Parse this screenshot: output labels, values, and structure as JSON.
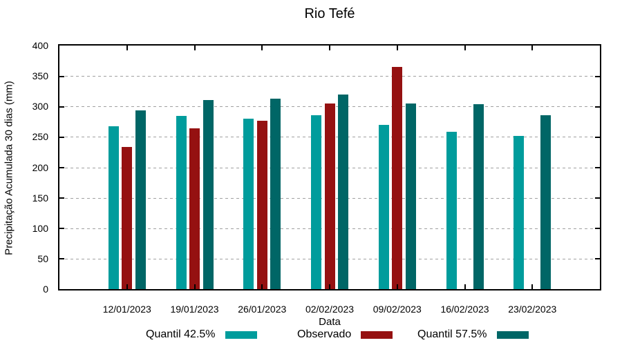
{
  "chart_data": {
    "type": "bar",
    "title": "Rio Tefé",
    "xlabel": "Data",
    "ylabel": "Precipitação Acumulada 30 dias (mm)",
    "ylim": [
      0,
      400
    ],
    "ytick_step": 50,
    "yticks": [
      0,
      50,
      100,
      150,
      200,
      250,
      300,
      350,
      400
    ],
    "grid": "horizontal-dotted",
    "gridline_color": "#a0a0a0",
    "legend_position": "bottom-center",
    "categories": [
      "12/01/2023",
      "19/01/2023",
      "26/01/2023",
      "02/02/2023",
      "09/02/2023",
      "16/02/2023",
      "23/02/2023"
    ],
    "series": [
      {
        "name": "Quantil 42.5%",
        "color": "#009C9C",
        "values": [
          267,
          285,
          280,
          286,
          270,
          258,
          252
        ]
      },
      {
        "name": "Observado",
        "color": "#951111",
        "values": [
          234,
          264,
          277,
          305,
          365,
          null,
          null
        ]
      },
      {
        "name": "Quantil 57.5%",
        "color": "#006666",
        "values": [
          293,
          310,
          313,
          320,
          305,
          304,
          286
        ]
      }
    ]
  }
}
